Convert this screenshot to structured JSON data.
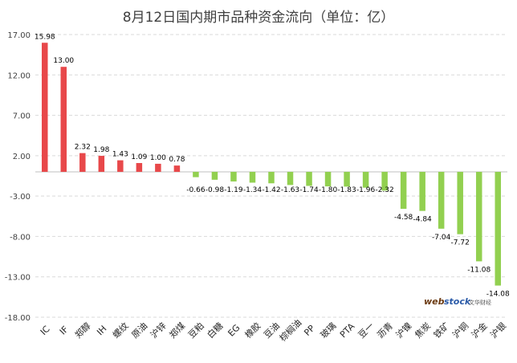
{
  "chart_data": {
    "type": "bar",
    "title": "8月12日国内期市品种资金流向（单位：亿）",
    "xlabel": "",
    "ylabel": "",
    "ylim": [
      -18,
      17
    ],
    "yticks": [
      "17.00",
      "12.00",
      "7.00",
      "2.00",
      "-3.00",
      "-8.00",
      "-13.00",
      "-18.00"
    ],
    "ytick_values": [
      17,
      12,
      7,
      2,
      -3,
      -8,
      -13,
      -18
    ],
    "grid": true,
    "legend": "none",
    "categories": [
      "IC",
      "IF",
      "郑醇",
      "IH",
      "螺纹",
      "原油",
      "沪锌",
      "郑煤",
      "豆粕",
      "白糖",
      "EG",
      "橡胶",
      "豆油",
      "棕榈油",
      "PP",
      "玻璃",
      "PTA",
      "豆一",
      "沥青",
      "沪镍",
      "焦炭",
      "铁矿",
      "沪铜",
      "沪金",
      "沪银"
    ],
    "values": [
      15.98,
      13.0,
      2.32,
      1.98,
      1.43,
      1.09,
      1.0,
      0.78,
      -0.66,
      -0.98,
      -1.19,
      -1.34,
      -1.42,
      -1.63,
      -1.74,
      -1.8,
      -1.83,
      -1.96,
      -2.32,
      -4.58,
      -4.84,
      -7.04,
      -7.72,
      -11.08,
      -14.08
    ],
    "value_labels": [
      "15.98",
      "13.00",
      "2.32",
      "1.98",
      "1.43",
      "1.09",
      "1.00",
      "0.78",
      "-0.66",
      "-0.98",
      "-1.19",
      "-1.34",
      "-1.42",
      "-1.63",
      "-1.74",
      "-1.80",
      "-1.83",
      "-1.96",
      "-2.32",
      "-4.58",
      "-4.84",
      "-7.04",
      "-7.72",
      "-11.08",
      "-14.08"
    ],
    "colors": {
      "positive": "#e8484a",
      "negative": "#92d050"
    }
  },
  "watermark": {
    "brand_web": "web",
    "brand_stock": "stock",
    "brand_cn": "文华财经"
  }
}
